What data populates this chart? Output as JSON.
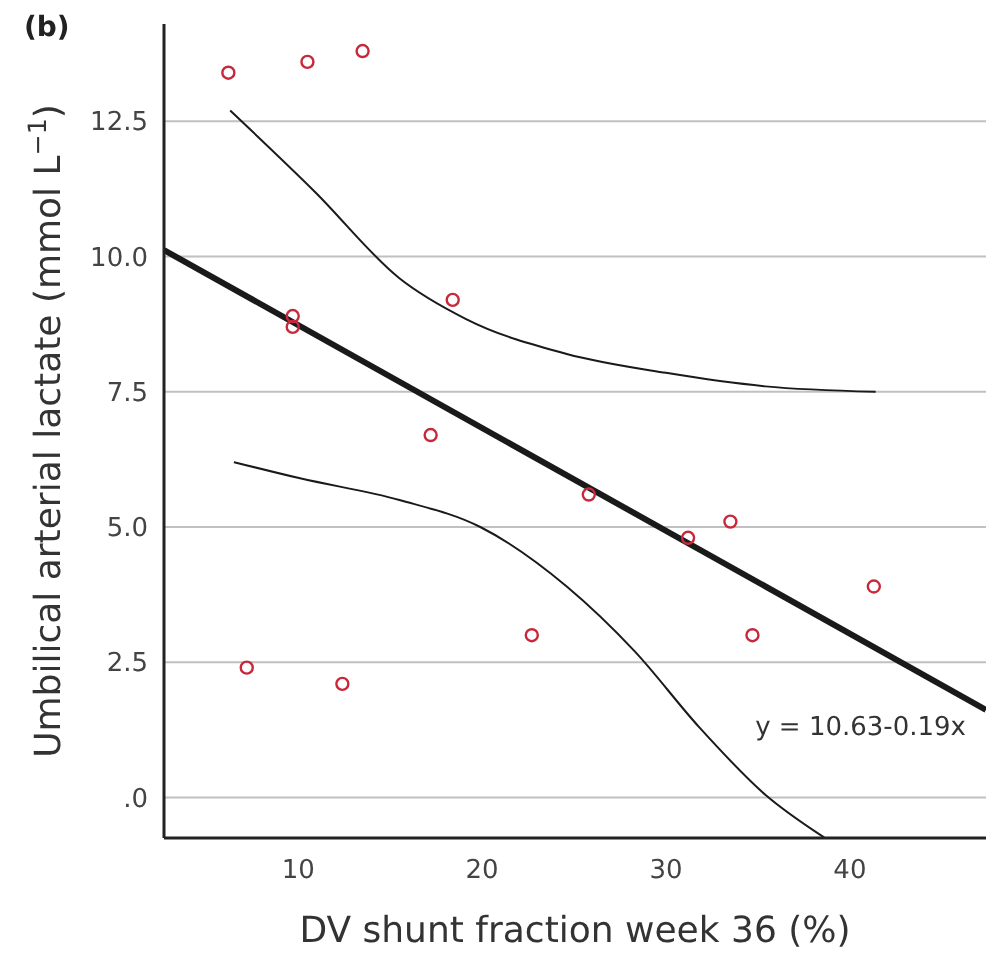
{
  "chart_data": {
    "type": "scatter",
    "title": "(b)",
    "xlabel": "DV shunt fraction week 36 (%)",
    "ylabel": "Umbilical arterial lactate (mmol L$^{−1}$)",
    "xlim": [
      2.7,
      47.4
    ],
    "ylim": [
      -0.75,
      14.3
    ],
    "xticks": [
      10,
      20,
      30,
      40
    ],
    "yticks": [
      {
        "value": 0,
        "label": ".0"
      },
      {
        "value": 2.5,
        "label": "2.5"
      },
      {
        "value": 5,
        "label": "5.0"
      },
      {
        "value": 7.5,
        "label": "7.5"
      },
      {
        "value": 10,
        "label": "10.0"
      },
      {
        "value": 12.5,
        "label": "12.5"
      }
    ],
    "grid": "y",
    "annotations": [
      "y = 10.63-0.19x"
    ],
    "series": [
      {
        "marker": "circle",
        "color": "#c8283c",
        "x": [
          6.2,
          10.5,
          13.5,
          9.7,
          9.7,
          18.4,
          17.2,
          25.8,
          31.2,
          33.5,
          7.2,
          12.4,
          22.7,
          34.7,
          41.3
        ],
        "values": [
          13.4,
          13.6,
          13.8,
          8.9,
          8.7,
          9.2,
          6.7,
          5.6,
          4.8,
          5.1,
          2.4,
          2.1,
          3.0,
          3.0,
          3.9
        ]
      },
      {
        "type": "line",
        "color": "#1a1a1a",
        "x": [
          2.7,
          47.4
        ],
        "values": [
          10.12,
          1.62
        ]
      },
      {
        "type": "line",
        "color": "#1a1a1a",
        "x": [
          6.3,
          10.9,
          15.5,
          19.1,
          24.6,
          30,
          35.4,
          41.4
        ],
        "values": [
          12.7,
          11.2,
          9.6,
          8.85,
          8.2,
          7.85,
          7.6,
          7.5
        ]
      },
      {
        "type": "line",
        "color": "#1a1a1a",
        "x": [
          6.5,
          10.1,
          15.5,
          19.9,
          24.6,
          28.3,
          31.8,
          35.4,
          38.6
        ],
        "values": [
          6.2,
          5.9,
          5.5,
          5.0,
          3.9,
          2.7,
          1.3,
          0.05,
          -0.74
        ]
      }
    ]
  }
}
